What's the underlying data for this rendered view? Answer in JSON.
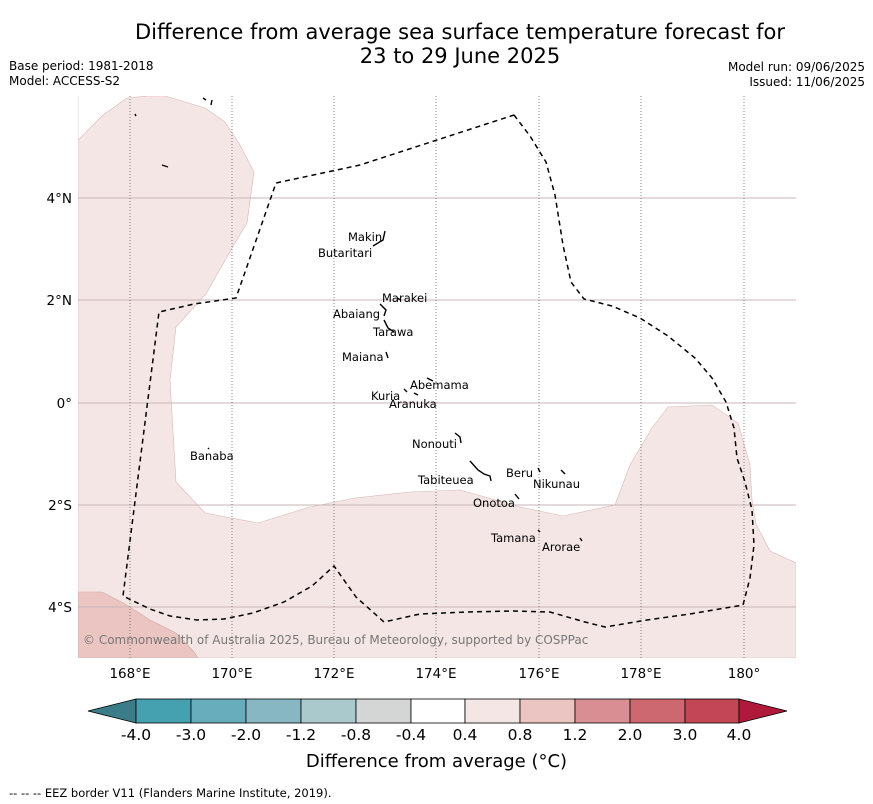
{
  "header": {
    "title_line1": "Difference from average sea surface temperature forecast for",
    "title_line2": "23 to 29 June 2025",
    "base_period": "Base period: 1981-2018",
    "model": "Model: ACCESS-S2",
    "model_run": "Model run: 09/06/2025",
    "issued": "Issued: 11/06/2025"
  },
  "map": {
    "lat_labels": [
      "4°N",
      "2°N",
      "0°",
      "2°S",
      "4°S"
    ],
    "lon_labels": [
      "168°E",
      "170°E",
      "172°E",
      "174°E",
      "176°E",
      "178°E",
      "180°"
    ],
    "places": {
      "makin": "Makin",
      "butaritari": "Butaritari",
      "marakei": "Marakei",
      "abaiang": "Abaiang",
      "tarawa": "Tarawa",
      "maiana": "Maiana",
      "abemama": "Abemama",
      "kuria": "Kuria",
      "aranuka": "Aranuka",
      "nonouti": "Nonouti",
      "banaba": "Banaba",
      "tabiteuea": "Tabiteuea",
      "beru": "Beru",
      "nikunau": "Nikunau",
      "onotoa": "Onotoa",
      "tamana": "Tamana",
      "arorae": "Arorae"
    },
    "copyright": "© Commonwealth of Australia 2025, Bureau of Meteorology, supported by COSPPac"
  },
  "colorbar": {
    "ticks": [
      "-4.0",
      "-3.0",
      "-2.0",
      "-1.2",
      "-0.8",
      "-0.4",
      "0.4",
      "0.8",
      "1.2",
      "2.0",
      "3.0",
      "4.0"
    ],
    "colors": {
      "below": "#3a7d88",
      "c1": "#45a0b0",
      "c2": "#68adbb",
      "c3": "#87b7c2",
      "c4": "#a9c9cd",
      "c5": "#d4d6d6",
      "c6": "#ffffff",
      "c7": "#f4e6e5",
      "c8": "#ebc5c1",
      "c9": "#d98e93",
      "c10": "#ce6870",
      "c11": "#c34656",
      "above": "#b01a3a"
    },
    "label": "Difference from average (°C)"
  },
  "footer": {
    "eez_note": "-- -- -- EEZ border V11 (Flanders Marine Institute, 2019)."
  }
}
